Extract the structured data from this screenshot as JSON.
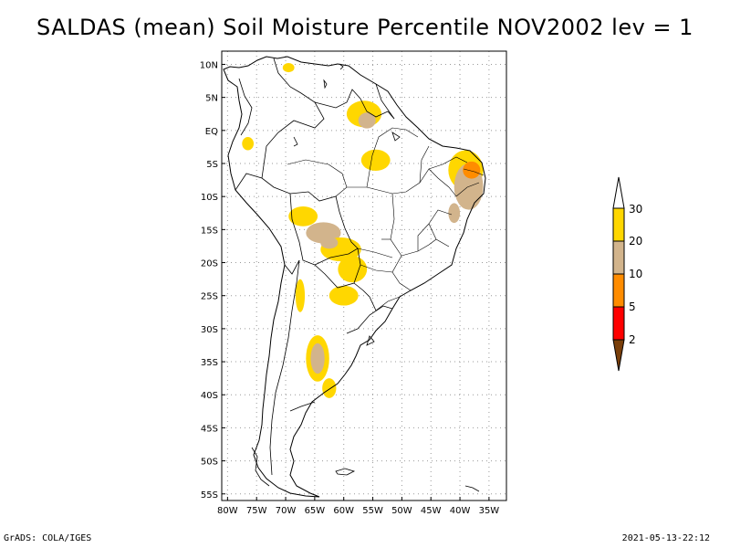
{
  "title": "SALDAS (mean) Soil Moisture Percentile NOV2002 lev = 1",
  "footer_left": "GrADS: COLA/IGES",
  "footer_right": "2021-05-13-22:12",
  "map": {
    "region": "South America",
    "lon_range": [
      -81,
      -32
    ],
    "lat_range": [
      -56,
      12
    ],
    "lat_ticks": [
      {
        "value": 10,
        "label": "10N"
      },
      {
        "value": 5,
        "label": "5N"
      },
      {
        "value": 0,
        "label": "EQ"
      },
      {
        "value": -5,
        "label": "5S"
      },
      {
        "value": -10,
        "label": "10S"
      },
      {
        "value": -15,
        "label": "15S"
      },
      {
        "value": -20,
        "label": "20S"
      },
      {
        "value": -25,
        "label": "25S"
      },
      {
        "value": -30,
        "label": "30S"
      },
      {
        "value": -35,
        "label": "35S"
      },
      {
        "value": -40,
        "label": "40S"
      },
      {
        "value": -45,
        "label": "45S"
      },
      {
        "value": -50,
        "label": "50S"
      },
      {
        "value": -55,
        "label": "55S"
      }
    ],
    "lon_ticks": [
      {
        "value": -80,
        "label": "80W"
      },
      {
        "value": -75,
        "label": "75W"
      },
      {
        "value": -70,
        "label": "70W"
      },
      {
        "value": -65,
        "label": "65W"
      },
      {
        "value": -60,
        "label": "60W"
      },
      {
        "value": -55,
        "label": "55W"
      },
      {
        "value": -50,
        "label": "50W"
      },
      {
        "value": -45,
        "label": "45W"
      },
      {
        "value": -40,
        "label": "40W"
      },
      {
        "value": -35,
        "label": "35W"
      }
    ]
  },
  "legend": {
    "colors": [
      "#7a3f0a",
      "#ff0000",
      "#ff8c00",
      "#d2b48c",
      "#ffd700",
      "#ffffff"
    ],
    "labels": [
      "2",
      "5",
      "10",
      "20",
      "30"
    ]
  },
  "patches": [
    {
      "color": "#ffd700",
      "lon": -56.5,
      "lat": 2.5,
      "rx": 3.0,
      "ry": 2.0
    },
    {
      "color": "#d2b48c",
      "lon": -56.0,
      "lat": 1.5,
      "rx": 1.5,
      "ry": 1.2
    },
    {
      "color": "#ffd700",
      "lon": -76.5,
      "lat": -2.0,
      "rx": 1.0,
      "ry": 1.0
    },
    {
      "color": "#ffd700",
      "lon": -69.5,
      "lat": 9.5,
      "rx": 1.0,
      "ry": 0.7
    },
    {
      "color": "#ffd700",
      "lon": -54.5,
      "lat": -4.5,
      "rx": 2.5,
      "ry": 1.6
    },
    {
      "color": "#ffd700",
      "lon": -39.0,
      "lat": -6.0,
      "rx": 3.0,
      "ry": 3.0
    },
    {
      "color": "#d2b48c",
      "lon": -38.5,
      "lat": -8.5,
      "rx": 2.5,
      "ry": 3.5
    },
    {
      "color": "#ff8c00",
      "lon": -38.0,
      "lat": -6.0,
      "rx": 1.5,
      "ry": 1.3
    },
    {
      "color": "#d2b48c",
      "lon": -41.0,
      "lat": -12.5,
      "rx": 1.0,
      "ry": 1.5
    },
    {
      "color": "#ffd700",
      "lon": -67.0,
      "lat": -13.0,
      "rx": 2.5,
      "ry": 1.5
    },
    {
      "color": "#d2b48c",
      "lon": -63.5,
      "lat": -15.5,
      "rx": 3.0,
      "ry": 1.6
    },
    {
      "color": "#ffd700",
      "lon": -60.5,
      "lat": -18.0,
      "rx": 3.5,
      "ry": 1.8
    },
    {
      "color": "#d2b48c",
      "lon": -62.5,
      "lat": -17.0,
      "rx": 1.5,
      "ry": 0.9
    },
    {
      "color": "#ffd700",
      "lon": -58.5,
      "lat": -21.0,
      "rx": 2.5,
      "ry": 2.0
    },
    {
      "color": "#ffd700",
      "lon": -60.0,
      "lat": -25.0,
      "rx": 2.5,
      "ry": 1.5
    },
    {
      "color": "#ffd700",
      "lon": -67.5,
      "lat": -25.0,
      "rx": 0.8,
      "ry": 2.5
    },
    {
      "color": "#ffd700",
      "lon": -64.5,
      "lat": -34.5,
      "rx": 2.0,
      "ry": 3.5
    },
    {
      "color": "#d2b48c",
      "lon": -64.5,
      "lat": -34.5,
      "rx": 1.2,
      "ry": 2.3
    },
    {
      "color": "#ffd700",
      "lon": -62.5,
      "lat": -39.0,
      "rx": 1.2,
      "ry": 1.5
    }
  ]
}
